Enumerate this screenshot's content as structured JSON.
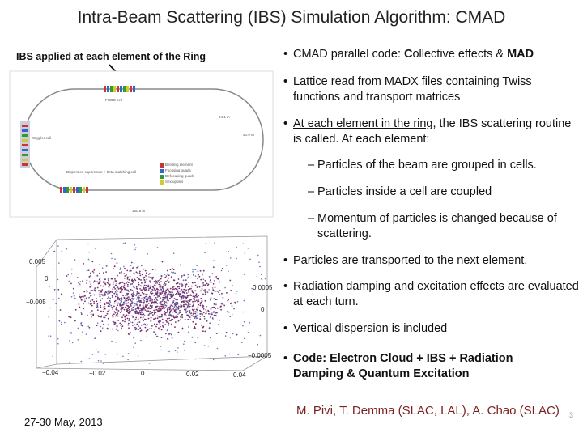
{
  "title": "Intra-Beam Scattering (IBS) Simulation Algorithm: CMAD",
  "left_caption": "IBS applied at each element of the Ring",
  "ring_figure": {
    "labels": [
      "FODO cell",
      "Wiggler cell",
      "Dispersion suppressor + beta matching cell",
      "Bending element",
      "Focusing quads",
      "Defocusing quads",
      "Sextupoles",
      "64.1 m",
      "160.9 m",
      "40.9 m"
    ]
  },
  "plot_figure": {
    "left_ticks": [
      "0.005",
      "0",
      "−0.005"
    ],
    "right_ticks": [
      "0.0005",
      "0",
      "−0.0005"
    ],
    "bottom_ticks": [
      "−0.04",
      "−0.02",
      "0",
      "0.02",
      "0.04"
    ]
  },
  "bullets": [
    {
      "marker": "•",
      "segments": [
        {
          "text": "CMAD parallel code: "
        },
        {
          "text": "C",
          "bold": true
        },
        {
          "text": "ollective effects & "
        },
        {
          "text": "MAD",
          "bold": true
        }
      ]
    },
    {
      "marker": "•",
      "segments": [
        {
          "text": "Lattice read from MADX files containing Twiss functions and transport matrices"
        }
      ]
    },
    {
      "marker": "•",
      "segments": [
        {
          "text": "At each element in the ring",
          "underline": true
        },
        {
          "text": ", the IBS scattering routine is called. At each element:"
        }
      ],
      "sub": [
        {
          "marker": "–",
          "segments": [
            {
              "text": "Particles of the beam are grouped in cells."
            }
          ]
        },
        {
          "marker": "–",
          "segments": [
            {
              "text": "Particles inside a cell are coupled"
            }
          ]
        },
        {
          "marker": "–",
          "segments": [
            {
              "text": "Momentum of particles is changed because of scattering."
            }
          ]
        }
      ]
    },
    {
      "marker": "•",
      "segments": [
        {
          "text": "Particles are transported to the next element."
        }
      ]
    },
    {
      "marker": "•",
      "segments": [
        {
          "text": "Radiation damping and excitation effects are evaluated at each turn."
        }
      ]
    },
    {
      "marker": "•",
      "segments": [
        {
          "text": "Vertical dispersion is included"
        }
      ]
    },
    {
      "marker": "•",
      "segments": [
        {
          "text": "Code: Electron Cloud + IBS + Radiation Damping & Quantum Excitation",
          "bold": true
        }
      ]
    }
  ],
  "footer": {
    "date": "27-30 May, 2013",
    "authors": "M. Pivi, T. Demma (SLAC, LAL), A. Chao (SLAC)",
    "page": "3"
  }
}
